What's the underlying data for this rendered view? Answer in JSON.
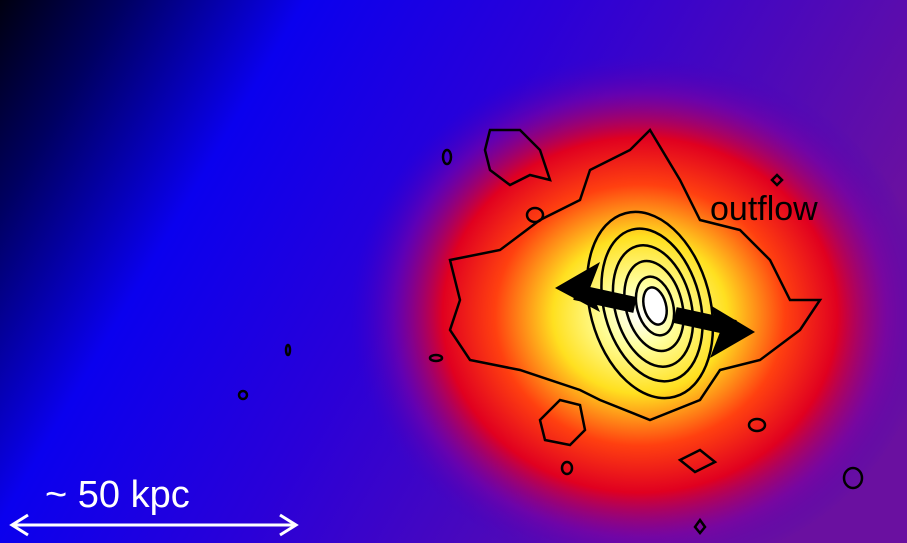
{
  "labels": {
    "outflow": "outflow",
    "scale": "~ 50 kpc"
  }
}
